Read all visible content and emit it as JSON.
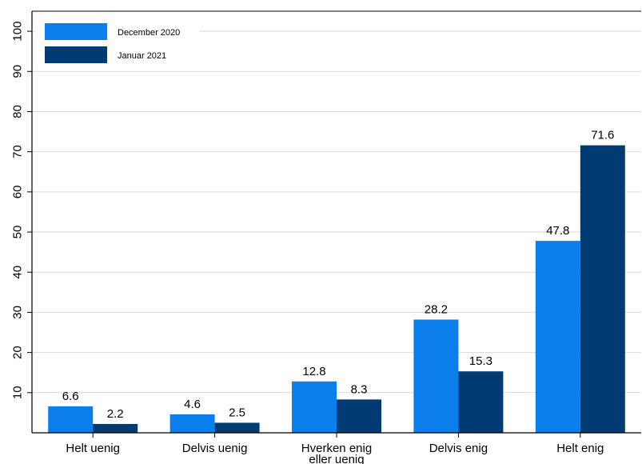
{
  "chart_data": {
    "type": "bar",
    "categories": [
      "Helt uenig",
      "Delvis uenig",
      "Hverken enig eller uenig",
      "Delvis enig",
      "Helt enig"
    ],
    "category_lines": [
      [
        "Helt uenig"
      ],
      [
        "Delvis uenig"
      ],
      [
        "Hverken enig",
        "eller uenig"
      ],
      [
        "Delvis enig"
      ],
      [
        "Helt enig"
      ]
    ],
    "series": [
      {
        "name": "December 2020",
        "values": [
          6.6,
          4.6,
          12.8,
          28.2,
          47.8
        ],
        "labels": [
          "6.6",
          "4.6",
          "12.8",
          "28.2",
          "47.8"
        ],
        "color": "#0A7FEB"
      },
      {
        "name": "Januar 2021",
        "values": [
          2.2,
          2.5,
          8.3,
          15.3,
          71.6
        ],
        "labels": [
          "2.2",
          "2.5",
          "8.3",
          "15.3",
          "71.6"
        ],
        "color": "#003B73"
      }
    ],
    "yticks": [
      "10",
      "20",
      "30",
      "40",
      "50",
      "60",
      "70",
      "80",
      "90",
      "100"
    ],
    "ylim": [
      0,
      105
    ],
    "grid": true,
    "legend_position": "top-left",
    "title": "",
    "xlabel": "",
    "ylabel": ""
  }
}
